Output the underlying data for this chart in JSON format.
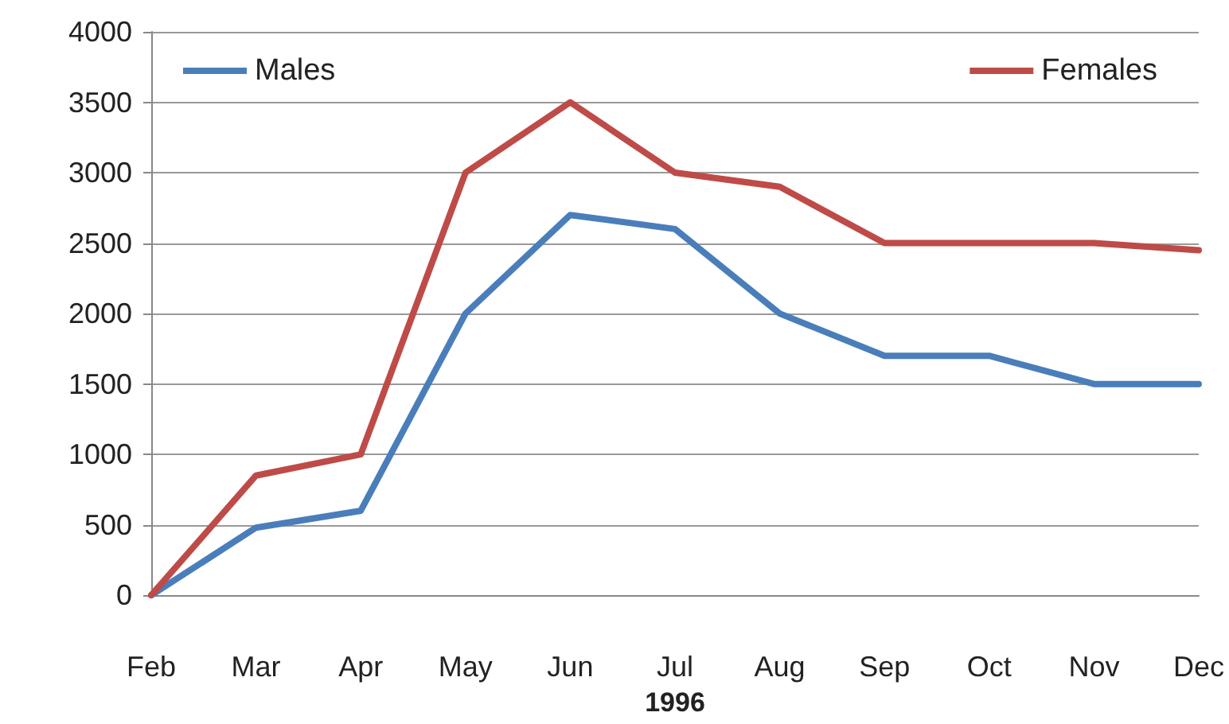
{
  "chart_data": {
    "type": "line",
    "xlabel": "1996",
    "categories": [
      "Feb",
      "Mar",
      "Apr",
      "May",
      "Jun",
      "Jul",
      "Aug",
      "Sep",
      "Oct",
      "Nov",
      "Dec"
    ],
    "series": [
      {
        "name": "Males",
        "color": "#4a7ebb",
        "values": [
          0,
          480,
          600,
          2000,
          2700,
          2600,
          2000,
          1700,
          1700,
          1500,
          1500
        ]
      },
      {
        "name": "Females",
        "color": "#be4b48",
        "values": [
          0,
          850,
          1000,
          3000,
          3500,
          3000,
          2900,
          2500,
          2500,
          2500,
          2450
        ]
      }
    ],
    "ylim": [
      0,
      4000
    ],
    "yticks": [
      0,
      500,
      1000,
      1500,
      2000,
      2500,
      3000,
      3500,
      4000
    ],
    "grid": "y",
    "legend": "top",
    "marker": "none",
    "line_style": "solid"
  }
}
